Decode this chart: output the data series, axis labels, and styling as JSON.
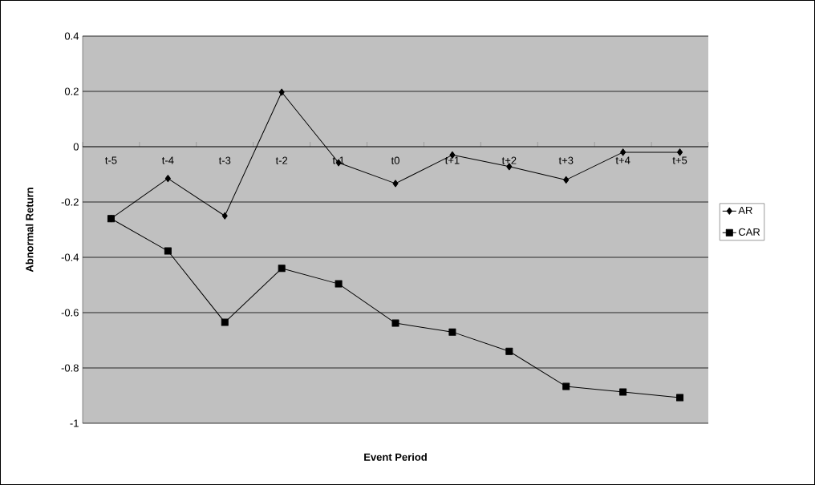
{
  "chart_data": {
    "type": "line",
    "xlabel": "Event Period",
    "ylabel": "Abnormal Return",
    "categories": [
      "t-5",
      "t-4",
      "t-3",
      "t-2",
      "t-1",
      "t0",
      "t+1",
      "t+2",
      "t+3",
      "t+4",
      "t+5"
    ],
    "series": [
      {
        "name": "AR",
        "color": "#000000",
        "marker": "diamond",
        "values": [
          -0.26,
          -0.115,
          -0.25,
          0.197,
          -0.058,
          -0.133,
          -0.03,
          -0.072,
          -0.12,
          -0.02,
          -0.02
        ]
      },
      {
        "name": "CAR",
        "color": "#000000",
        "marker": "square",
        "values": [
          -0.26,
          -0.377,
          -0.635,
          -0.44,
          -0.496,
          -0.638,
          -0.67,
          -0.74,
          -0.867,
          -0.887,
          -0.907
        ]
      }
    ],
    "ylim": [
      -1,
      0.4
    ],
    "yticks": [
      -1,
      -0.8,
      -0.6,
      -0.4,
      -0.2,
      0,
      0.2,
      0.4
    ],
    "grid": "y",
    "legend": "right",
    "line_style": "solid"
  }
}
